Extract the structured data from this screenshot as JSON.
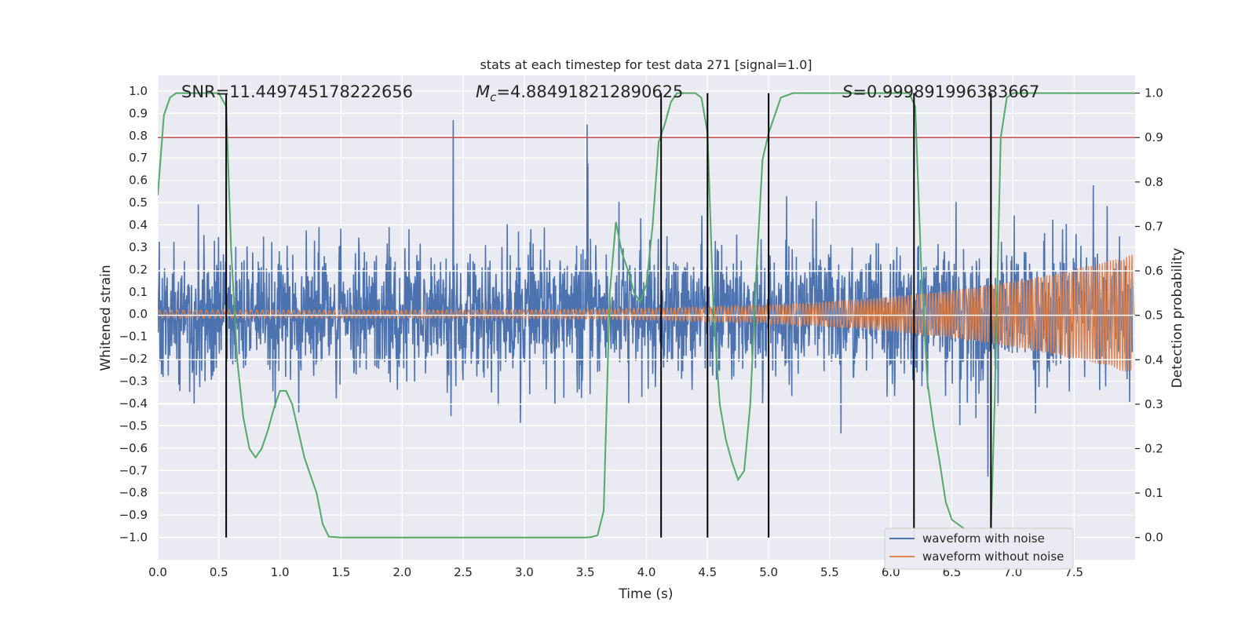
{
  "chart_data": {
    "type": "line",
    "title": "stats at each timestep for test data 271 [signal=1.0]",
    "xlabel": "Time (s)",
    "ylabel_left": "Whitened strain",
    "ylabel_right": "Detection probability",
    "xlim": [
      0.0,
      8.0
    ],
    "ylim_left": [
      -1.1,
      1.07
    ],
    "ylim_right": [
      -0.05,
      1.04
    ],
    "x_ticks": [
      "0.0",
      "0.5",
      "1.0",
      "1.5",
      "2.0",
      "2.5",
      "3.0",
      "3.5",
      "4.0",
      "4.5",
      "5.0",
      "5.5",
      "6.0",
      "6.5",
      "7.0",
      "7.5"
    ],
    "y_left_ticks": [
      "1.0",
      "0.9",
      "0.8",
      "0.7",
      "0.6",
      "0.5",
      "0.4",
      "0.3",
      "0.2",
      "0.1",
      "0.0",
      "−0.1",
      "−0.2",
      "−0.3",
      "−0.4",
      "−0.5",
      "−0.6",
      "−0.7",
      "−0.8",
      "−0.9",
      "−1.0"
    ],
    "y_right_ticks": [
      "1.0",
      "0.9",
      "0.8",
      "0.7",
      "0.6",
      "0.5",
      "0.4",
      "0.3",
      "0.2",
      "0.1",
      "0.0"
    ],
    "annotations": {
      "snr": "SNR=11.449745178222656",
      "mc_prefix": "M",
      "mc_sub": "c",
      "mc_value": "=4.884918212890625",
      "s_prefix": "S",
      "s_value": "=0.999891996383667"
    },
    "legend": {
      "noise_label": "waveform with noise",
      "clean_label": "waveform without noise",
      "position": "lower-right"
    },
    "colors": {
      "noise": "#4c72b0",
      "clean": "#dd8452",
      "probability": "#55a868",
      "threshold": "#c44e52",
      "marker": "#000000",
      "background": "#eaeaf2",
      "grid": "#ffffff"
    },
    "threshold_probability": 0.9,
    "vertical_markers": [
      0.56,
      4.12,
      4.5,
      5.0,
      6.19,
      6.82
    ],
    "series": [
      {
        "name": "detection probability",
        "axis": "right",
        "x": [
          0.0,
          0.05,
          0.1,
          0.15,
          0.2,
          0.3,
          0.4,
          0.5,
          0.56,
          0.6,
          0.65,
          0.7,
          0.75,
          0.8,
          0.85,
          0.9,
          0.95,
          1.0,
          1.05,
          1.1,
          1.15,
          1.2,
          1.3,
          1.35,
          1.4,
          1.5,
          2.0,
          2.5,
          3.0,
          3.5,
          3.55,
          3.6,
          3.65,
          3.7,
          3.75,
          3.8,
          3.85,
          3.9,
          3.95,
          4.0,
          4.05,
          4.1,
          4.15,
          4.2,
          4.25,
          4.3,
          4.4,
          4.45,
          4.5,
          4.55,
          4.6,
          4.65,
          4.7,
          4.75,
          4.8,
          4.85,
          4.9,
          4.95,
          5.0,
          5.05,
          5.1,
          5.2,
          5.5,
          6.0,
          6.15,
          6.2,
          6.25,
          6.3,
          6.35,
          6.4,
          6.45,
          6.5,
          6.6,
          6.7,
          6.75,
          6.8,
          6.82,
          6.85,
          6.9,
          6.95,
          7.0,
          7.5,
          8.0
        ],
        "y": [
          0.77,
          0.95,
          0.99,
          1.0,
          1.0,
          1.0,
          1.0,
          1.0,
          0.97,
          0.65,
          0.4,
          0.27,
          0.2,
          0.18,
          0.2,
          0.24,
          0.29,
          0.33,
          0.33,
          0.3,
          0.24,
          0.18,
          0.1,
          0.03,
          0.002,
          0.0,
          0.0,
          0.0,
          0.0,
          0.0,
          0.001,
          0.005,
          0.06,
          0.55,
          0.71,
          0.64,
          0.6,
          0.55,
          0.53,
          0.57,
          0.7,
          0.89,
          0.93,
          0.98,
          1.0,
          1.0,
          1.0,
          0.99,
          0.91,
          0.5,
          0.3,
          0.22,
          0.17,
          0.13,
          0.15,
          0.3,
          0.6,
          0.85,
          0.91,
          0.95,
          0.99,
          1.0,
          1.0,
          1.0,
          1.0,
          0.97,
          0.6,
          0.35,
          0.25,
          0.17,
          0.08,
          0.04,
          0.02,
          0.01,
          0.0,
          0.0,
          0.02,
          0.3,
          0.9,
          0.99,
          1.0,
          1.0,
          1.0
        ]
      },
      {
        "name": "waveform with noise",
        "axis": "left",
        "description_envelope": "dense noise, typical amplitude +/-0.3, peaks near +/-0.9"
      },
      {
        "name": "waveform without noise",
        "axis": "left",
        "description_envelope": "chirp, amplitude ~0.02 rising to ~0.27 at 7.98s"
      }
    ]
  }
}
